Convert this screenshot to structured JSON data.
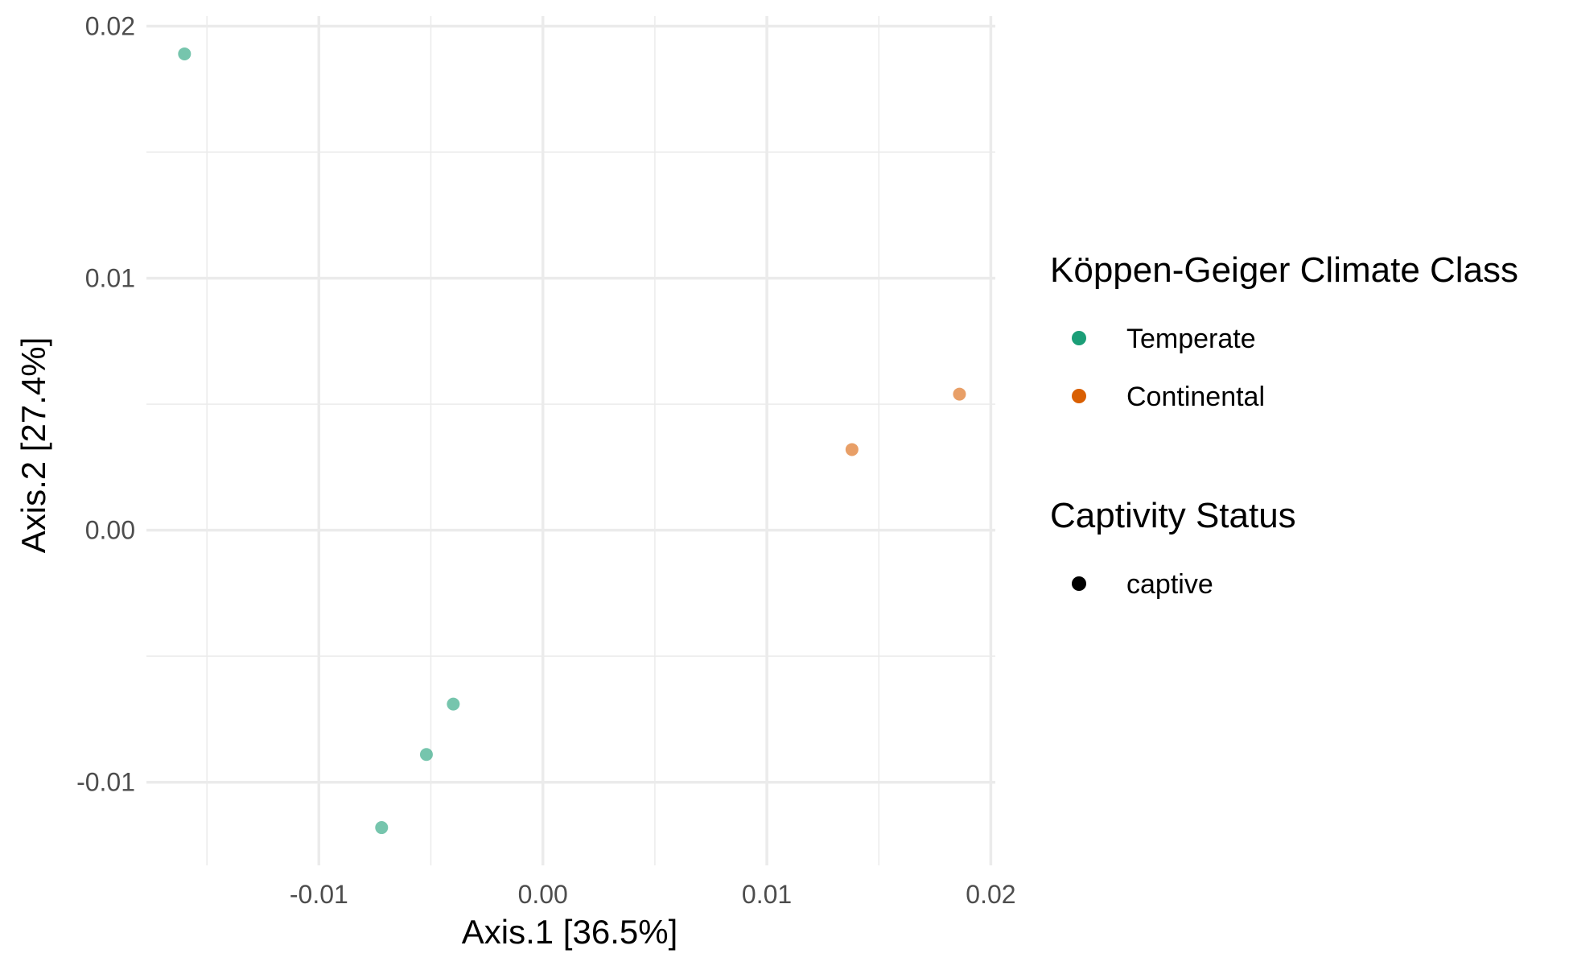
{
  "chart_data": {
    "type": "scatter",
    "xlabel": "Axis.1   [36.5%]",
    "ylabel": "Axis.2   [27.4%]",
    "xlim": [
      -0.0177,
      0.0202
    ],
    "ylim": [
      -0.0133,
      0.0204
    ],
    "x_ticks": [
      -0.01,
      0.0,
      0.01,
      0.02
    ],
    "x_tick_labels": [
      "-0.01",
      "0.00",
      "0.01",
      "0.02"
    ],
    "y_ticks": [
      -0.01,
      0.0,
      0.01,
      0.02
    ],
    "y_tick_labels": [
      "-0.01",
      "0.00",
      "0.01",
      "0.02"
    ],
    "grid": true,
    "legend_position": "right",
    "series": [
      {
        "name": "Temperate",
        "color": "#1b9e77",
        "points": [
          {
            "x": -0.016,
            "y": 0.0189
          },
          {
            "x": -0.0072,
            "y": -0.0118
          },
          {
            "x": -0.0052,
            "y": -0.0089
          },
          {
            "x": -0.004,
            "y": -0.0069
          }
        ]
      },
      {
        "name": "Continental",
        "color": "#d95f02",
        "points": [
          {
            "x": 0.0138,
            "y": 0.0032
          },
          {
            "x": 0.0186,
            "y": 0.0054
          }
        ]
      }
    ],
    "point_alpha": 0.6,
    "legends": [
      {
        "title": "Köppen-Geiger Climate Class",
        "items": [
          {
            "label": "Temperate",
            "color": "#1b9e77"
          },
          {
            "label": "Continental",
            "color": "#d95f02"
          }
        ]
      },
      {
        "title": "Captivity Status",
        "items": [
          {
            "label": "captive",
            "color": "#000000"
          }
        ]
      }
    ]
  }
}
